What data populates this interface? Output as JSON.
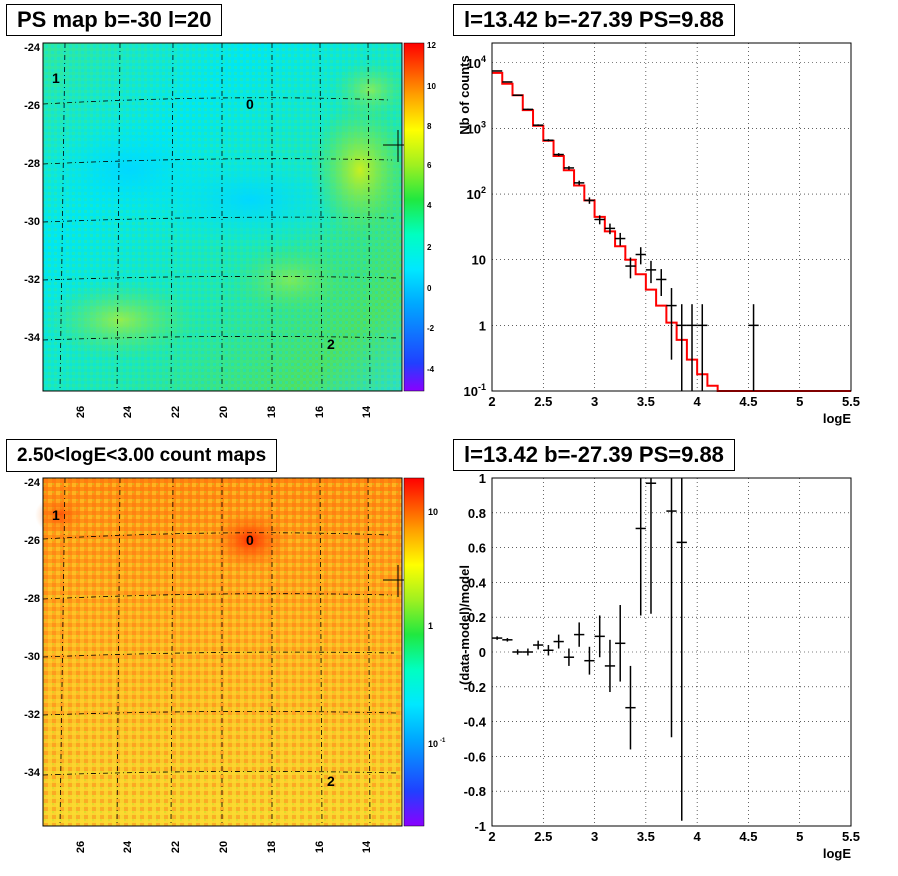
{
  "panels": {
    "top_left_title": "PS map b=-30 l=20",
    "top_right_title": "l=13.42 b=-27.39 PS=9.88",
    "bottom_left_title": "2.50<logE<3.00 count maps",
    "bottom_right_title": "l=13.42 b=-27.39 PS=9.88"
  },
  "maps": {
    "y_ticks": [
      "-24",
      "-26",
      "-28",
      "-30",
      "-32",
      "-34"
    ],
    "x_ticks": [
      "26",
      "24",
      "22",
      "20",
      "18",
      "16",
      "14"
    ],
    "markers": [
      "1",
      "0",
      "2"
    ],
    "ps_colorbar_ticks": [
      "12",
      "10",
      "8",
      "6",
      "4",
      "2",
      "0",
      "-2",
      "-4"
    ],
    "count_colorbar_ticks": [
      "10",
      "1",
      "10",
      "-1"
    ]
  },
  "chart_data": [
    {
      "type": "heatmap",
      "title": "PS map b=-30 l=20",
      "xlim": [
        27.5,
        12.5
      ],
      "ylim": [
        -36,
        -24
      ],
      "xticks": [
        26,
        24,
        22,
        20,
        18,
        16,
        14
      ],
      "yticks": [
        -24,
        -26,
        -28,
        -30,
        -32,
        -34
      ],
      "colorbar": {
        "min": -5,
        "max": 12,
        "ticks": [
          12,
          10,
          8,
          6,
          4,
          2,
          0,
          -2,
          -4
        ]
      },
      "markers": [
        {
          "label": "1",
          "l": 27,
          "b": -25.2
        },
        {
          "label": "0",
          "l": 19,
          "b": -26
        },
        {
          "label": "2",
          "l": 16,
          "b": -34.3
        }
      ],
      "source_marker": {
        "l": 13.42,
        "b": -27.39
      }
    },
    {
      "type": "line",
      "title": "l=13.42 b=-27.39 PS=9.88",
      "xlabel": "logE",
      "ylabel": "Nb of counts",
      "xlim": [
        2,
        5.5
      ],
      "ylim": [
        0.1,
        20000
      ],
      "yscale": "log",
      "xticks": [
        2,
        2.5,
        3,
        3.5,
        4,
        4.5,
        5,
        5.5
      ],
      "yticks": [
        0.1,
        1,
        10,
        100,
        1000,
        10000
      ],
      "grid": true,
      "series": [
        {
          "style": "histogram",
          "color": "#ff0000",
          "x": [
            2.05,
            2.15,
            2.25,
            2.35,
            2.45,
            2.55,
            2.65,
            2.75,
            2.85,
            2.95,
            3.05,
            3.15,
            3.25,
            3.35,
            3.45,
            3.55,
            3.65,
            3.75,
            3.85,
            3.95,
            4.05,
            4.15,
            4.25,
            4.35,
            4.45,
            4.55,
            4.65,
            4.75,
            4.85,
            4.95,
            5.05,
            5.15,
            5.25,
            5.35,
            5.45
          ],
          "values": [
            7000,
            4800,
            3200,
            1900,
            1100,
            650,
            380,
            230,
            135,
            80,
            45,
            27,
            16,
            10,
            6,
            3.5,
            2,
            1.1,
            0.6,
            0.3,
            0.18,
            0.12,
            0.1,
            0.1,
            0.1,
            0.1,
            0.1,
            0.1,
            0.1,
            0.1,
            0.1,
            0.1,
            0.1,
            0.1,
            0.1
          ]
        },
        {
          "style": "errorbar",
          "color": "#000000",
          "x": [
            2.05,
            2.15,
            2.25,
            2.35,
            2.45,
            2.55,
            2.65,
            2.75,
            2.85,
            2.95,
            3.05,
            3.15,
            3.25,
            3.35,
            3.45,
            3.55,
            3.65,
            3.75,
            3.85,
            3.95,
            4.05,
            4.55
          ],
          "values": [
            7500,
            5100,
            3200,
            1950,
            1120,
            660,
            400,
            250,
            148,
            80,
            41,
            30,
            21,
            8,
            12,
            7,
            5,
            2,
            1,
            1,
            1,
            1
          ],
          "err_low": [
            87,
            72,
            57,
            44,
            33,
            26,
            20,
            16,
            12,
            9,
            6.4,
            5.5,
            4.6,
            2.8,
            3.5,
            2.6,
            2.2,
            1.7,
            0.99,
            0.99,
            0.99,
            0.99
          ],
          "err_high": [
            87,
            72,
            57,
            44,
            33,
            26,
            20,
            16,
            12,
            9,
            6.4,
            5.5,
            4.6,
            2.8,
            3.5,
            2.6,
            2.2,
            1.7,
            1.1,
            1.1,
            1.1,
            1.1
          ]
        }
      ]
    },
    {
      "type": "heatmap",
      "title": "2.50<logE<3.00 count maps",
      "xlim": [
        27.5,
        12.5
      ],
      "ylim": [
        -36,
        -24
      ],
      "xticks": [
        26,
        24,
        22,
        20,
        18,
        16,
        14
      ],
      "yticks": [
        -24,
        -26,
        -28,
        -30,
        -32,
        -34
      ],
      "colorbar": {
        "scale": "log",
        "min": 0.03,
        "max": 30
      },
      "markers": [
        {
          "label": "1",
          "l": 27,
          "b": -25.2
        },
        {
          "label": "0",
          "l": 19,
          "b": -26
        },
        {
          "label": "2",
          "l": 16,
          "b": -34.3
        }
      ],
      "source_marker": {
        "l": 13.42,
        "b": -27.39
      }
    },
    {
      "type": "scatter",
      "title": "l=13.42 b=-27.39 PS=9.88",
      "xlabel": "logE",
      "ylabel": "(data-model)/model",
      "xlim": [
        2,
        5.5
      ],
      "ylim": [
        -1,
        1
      ],
      "xticks": [
        2,
        2.5,
        3,
        3.5,
        4,
        4.5,
        5,
        5.5
      ],
      "yticks": [
        -1,
        -0.8,
        -0.6,
        -0.4,
        -0.2,
        0,
        0.2,
        0.4,
        0.6,
        0.8,
        1
      ],
      "grid": true,
      "series": [
        {
          "style": "errorbar",
          "color": "#000000",
          "x": [
            2.05,
            2.15,
            2.25,
            2.35,
            2.45,
            2.55,
            2.65,
            2.75,
            2.85,
            2.95,
            3.05,
            3.15,
            3.25,
            3.35,
            3.45,
            3.55,
            3.75,
            3.85
          ],
          "values": [
            0.08,
            0.07,
            0.0,
            0.0,
            0.04,
            0.01,
            0.06,
            -0.03,
            0.1,
            -0.05,
            0.09,
            -0.08,
            0.05,
            -0.32,
            0.71,
            0.97,
            0.81,
            0.63
          ],
          "err": [
            0.01,
            0.01,
            0.015,
            0.02,
            0.025,
            0.03,
            0.04,
            0.05,
            0.07,
            0.08,
            0.12,
            0.15,
            0.22,
            0.24,
            0.5,
            0.75,
            1.3,
            1.6
          ]
        }
      ]
    }
  ]
}
